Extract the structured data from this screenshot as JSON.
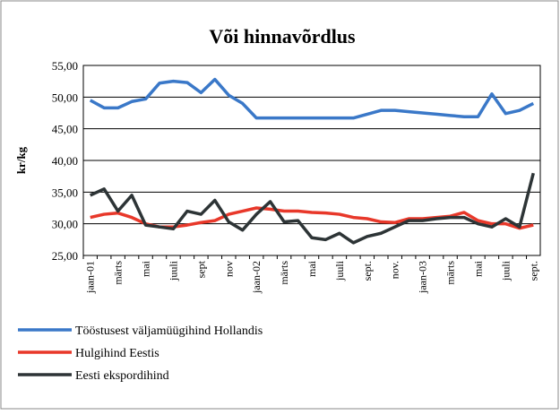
{
  "chart_data": {
    "type": "line",
    "title": "Või hinnavõrdlus",
    "y_label": "kr/kg",
    "categories": [
      "jaan-01",
      null,
      "märts",
      null,
      "mai",
      null,
      "juuli",
      null,
      "sept",
      null,
      "nov",
      null,
      "jaan-02",
      null,
      "märts",
      null,
      "mai",
      null,
      "juuli",
      null,
      "sept.",
      null,
      "nov.",
      null,
      "jaan-03",
      null,
      "märts",
      null,
      "mai",
      null,
      "juuli",
      null,
      "sept."
    ],
    "series": [
      {
        "name": "Tööstusest väljamüügihind Hollandis",
        "color": "#3a78c8",
        "values": [
          49.5,
          48.3,
          48.3,
          49.3,
          49.7,
          52.2,
          52.5,
          52.3,
          50.7,
          52.8,
          50.3,
          49.0,
          46.7,
          46.7,
          46.7,
          46.7,
          46.7,
          46.7,
          46.7,
          46.7,
          47.3,
          47.9,
          47.9,
          47.7,
          47.5,
          47.3,
          47.1,
          46.9,
          46.9,
          50.5,
          47.4,
          47.9,
          49.0
        ]
      },
      {
        "name": "Hulgihind Eestis",
        "color": "#e8382a",
        "values": [
          31.0,
          31.5,
          31.7,
          31.0,
          30.0,
          29.5,
          29.5,
          29.8,
          30.2,
          30.5,
          31.5,
          32.0,
          32.5,
          32.3,
          32.0,
          32.0,
          31.8,
          31.7,
          31.5,
          31.0,
          30.8,
          30.3,
          30.2,
          30.8,
          30.8,
          31.0,
          31.2,
          31.8,
          30.5,
          30.0,
          30.0,
          29.3,
          29.8
        ]
      },
      {
        "name": "Eesti ekspordihind",
        "color": "#2d3436",
        "values": [
          34.5,
          35.5,
          32.0,
          34.5,
          29.8,
          29.5,
          29.2,
          32.0,
          31.5,
          33.7,
          30.3,
          29.0,
          31.5,
          33.5,
          30.3,
          30.5,
          27.8,
          27.5,
          28.5,
          27.0,
          28.0,
          28.5,
          29.5,
          30.5,
          30.5,
          30.8,
          31.0,
          31.0,
          30.0,
          29.5,
          30.8,
          29.5,
          38.0
        ]
      }
    ],
    "ylim": [
      25,
      55
    ],
    "yticks": [
      {
        "value": 25,
        "label": "25,00"
      },
      {
        "value": 30,
        "label": "30,00"
      },
      {
        "value": 35,
        "label": "35,00"
      },
      {
        "value": 40,
        "label": "40,00"
      },
      {
        "value": 45,
        "label": "45,00"
      },
      {
        "value": 50,
        "label": "50,00"
      },
      {
        "value": 55,
        "label": "55,00"
      }
    ],
    "grid": true,
    "legend": "bottom"
  }
}
